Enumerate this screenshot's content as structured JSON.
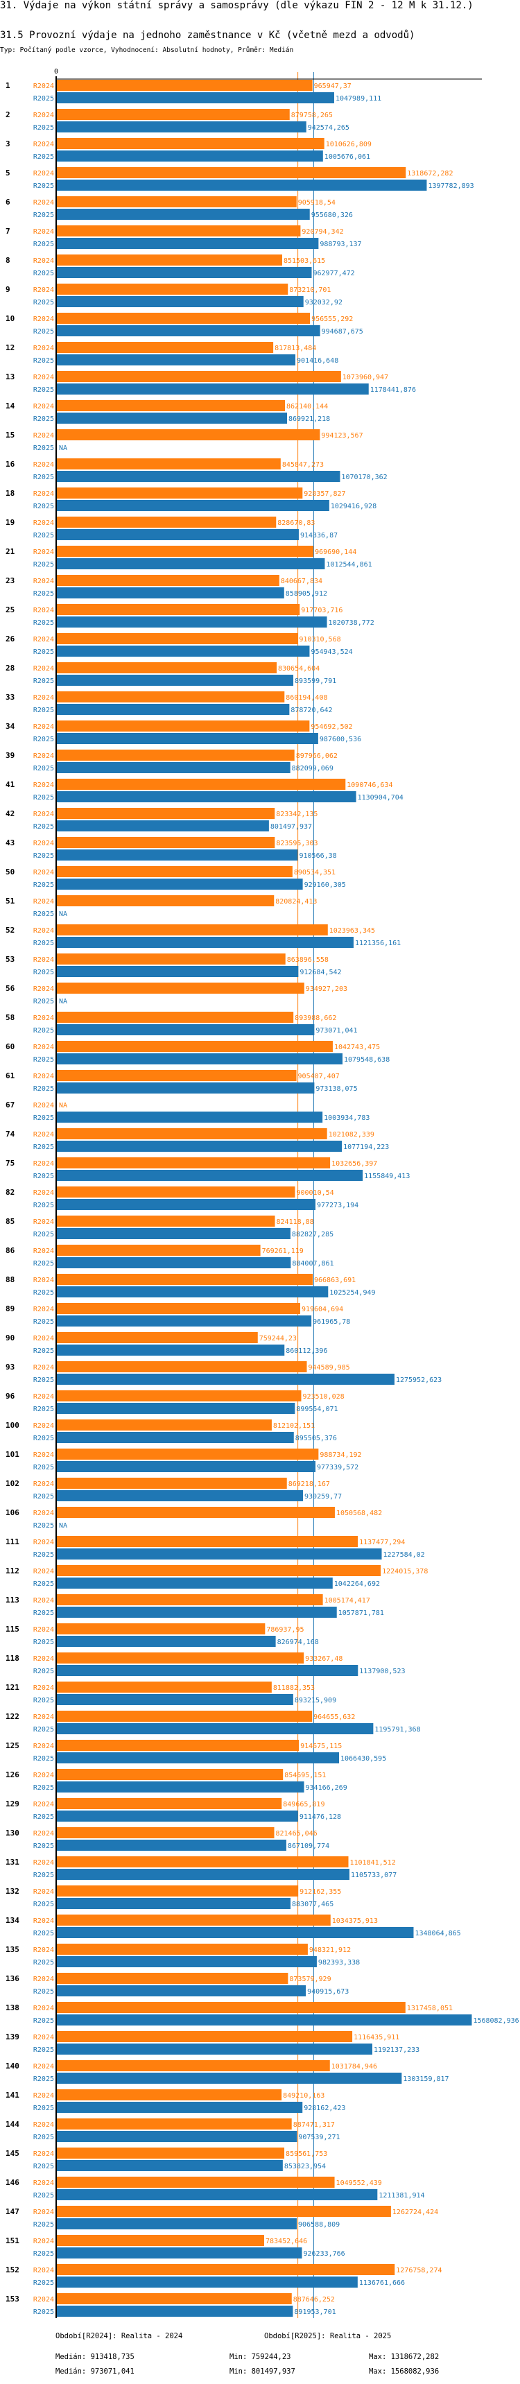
{
  "header": {
    "title": "31. Výdaje na výkon státní správy a samosprávy (dle výkazu FIN 2 - 12 M k 31.12.)",
    "subtitle": "31.5 Provozní výdaje na jednoho zaměstnance v Kč (včetně mezd a odvodů)",
    "meta": "Typ: Počítaný podle vzorce, Vyhodnocení: Absolutní hodnoty, Průměr: Medián"
  },
  "chart_data": {
    "type": "bar",
    "orientation": "horizontal",
    "title": "31.5 Provozní výdaje na jednoho zaměstnance v Kč (včetně mezd a odvodů)",
    "xlabel": "",
    "ylabel": "",
    "x_axis_tick": "0",
    "xlim": [
      0,
      1568082.936
    ],
    "grid": false,
    "na_label": "NA",
    "colors": {
      "R2024": "#ff7f0e",
      "R2025": "#1f77b4",
      "axis": "#000000"
    },
    "categories": [
      "1",
      "2",
      "3",
      "5",
      "6",
      "7",
      "8",
      "9",
      "10",
      "12",
      "13",
      "14",
      "15",
      "16",
      "18",
      "19",
      "21",
      "23",
      "25",
      "26",
      "28",
      "33",
      "34",
      "39",
      "41",
      "42",
      "43",
      "50",
      "51",
      "52",
      "53",
      "56",
      "58",
      "60",
      "61",
      "67",
      "74",
      "75",
      "82",
      "85",
      "86",
      "88",
      "89",
      "90",
      "93",
      "96",
      "100",
      "101",
      "102",
      "106",
      "111",
      "112",
      "113",
      "115",
      "118",
      "121",
      "122",
      "125",
      "126",
      "129",
      "130",
      "131",
      "132",
      "134",
      "135",
      "136",
      "138",
      "139",
      "140",
      "141",
      "144",
      "145",
      "146",
      "147",
      "151",
      "152",
      "153"
    ],
    "series": [
      {
        "name": "R2024",
        "legend": "Období[R2024]: Realita - 2024",
        "values": [
          965947.37,
          879758.265,
          1010626.809,
          1318672.282,
          905918.54,
          920794.342,
          851503.615,
          873210.701,
          956555.292,
          817813.484,
          1073960.947,
          862140.144,
          994123.567,
          845847.273,
          928357.827,
          828670.83,
          969690.144,
          840667.834,
          917703.716,
          910310.568,
          830654.604,
          860194.408,
          954692.502,
          897966.062,
          1090746.634,
          823342.135,
          823595.303,
          890534.351,
          820824.413,
          1023963.345,
          863896.558,
          934927.203,
          893988.662,
          1042743.475,
          905407.407,
          null,
          1021082.339,
          1032656.397,
          900010.54,
          824118.88,
          769261.119,
          966863.691,
          919604.694,
          759244.23,
          944589.985,
          923510.028,
          812102.151,
          988734.192,
          869218.167,
          1050568.482,
          1137477.294,
          1224015.378,
          1005174.417,
          786937.95,
          933267.48,
          811882.353,
          964655.632,
          914675.115,
          854695.151,
          849665.819,
          821465.046,
          1101841.512,
          912162.355,
          1034375.913,
          948321.912,
          873579.929,
          1317458.051,
          1116435.911,
          1031784.946,
          849210.163,
          887471.317,
          859561.753,
          1049552.439,
          1262724.424,
          783452.646,
          1276758.274,
          887646.252
        ],
        "labels": [
          "965947,37",
          "879758,265",
          "1010626,809",
          "1318672,282",
          "905918,54",
          "920794,342",
          "851503,615",
          "873210,701",
          "956555,292",
          "817813,484",
          "1073960,947",
          "862140,144",
          "994123,567",
          "845847,273",
          "928357,827",
          "828670,83",
          "969690,144",
          "840667,834",
          "917703,716",
          "910310,568",
          "830654,604",
          "860194,408",
          "954692,502",
          "897966,062",
          "1090746,634",
          "823342,135",
          "823595,303",
          "890534,351",
          "820824,413",
          "1023963,345",
          "863896,558",
          "934927,203",
          "893988,662",
          "1042743,475",
          "905407,407",
          "NA",
          "1021082,339",
          "1032656,397",
          "900010,54",
          "824118,88",
          "769261,119",
          "966863,691",
          "919604,694",
          "759244,23",
          "944589,985",
          "923510,028",
          "812102,151",
          "988734,192",
          "869218,167",
          "1050568,482",
          "1137477,294",
          "1224015,378",
          "1005174,417",
          "786937,95",
          "933267,48",
          "811882,353",
          "964655,632",
          "914675,115",
          "854695,151",
          "849665,819",
          "821465,046",
          "1101841,512",
          "912162,355",
          "1034375,913",
          "948321,912",
          "873579,929",
          "1317458,051",
          "1116435,911",
          "1031784,946",
          "849210,163",
          "887471,317",
          "859561,753",
          "1049552,439",
          "1262724,424",
          "783452,646",
          "1276758,274",
          "887646,252"
        ],
        "median": 913418.735,
        "min": 759244.23,
        "max": 1318672.282,
        "median_label": "Medián: 913418,735",
        "min_label": "Min: 759244,23",
        "max_label": "Max: 1318672,282"
      },
      {
        "name": "R2025",
        "legend": "Období[R2025]: Realita - 2025",
        "values": [
          1047989.111,
          942574.265,
          1005676.061,
          1397782.893,
          955680.326,
          988793.137,
          962977.472,
          932032.92,
          994687.675,
          901416.648,
          1178441.876,
          869921.218,
          null,
          1070170.362,
          1029416.928,
          914336.87,
          1012544.861,
          858905.912,
          1020738.772,
          954943.524,
          893599.791,
          878720.642,
          987600.536,
          882099.069,
          1130904.704,
          801497.937,
          910566.38,
          929160.305,
          null,
          1121356.161,
          912684.542,
          null,
          973071.041,
          1079548.638,
          973138.075,
          1003934.783,
          1077194.223,
          1155849.413,
          977273.194,
          882827.285,
          884007.861,
          1025254.949,
          961965.78,
          860112.396,
          1275952.623,
          899554.071,
          895505.376,
          977339.572,
          930259.77,
          null,
          1227584.02,
          1042264.692,
          1057871.781,
          826974.168,
          1137900.523,
          893215.909,
          1195791.368,
          1066430.595,
          934166.269,
          911476.128,
          867109.774,
          1105733.077,
          883077.465,
          1348064.865,
          982393.338,
          940915.673,
          1568082.936,
          1192137.233,
          1303159.817,
          928162.423,
          907539.271,
          853823.954,
          1211381.914,
          906588.809,
          926233.766,
          1136761.666,
          891953.701
        ],
        "labels": [
          "1047989,111",
          "942574,265",
          "1005676,061",
          "1397782,893",
          "955680,326",
          "988793,137",
          "962977,472",
          "932032,92",
          "994687,675",
          "901416,648",
          "1178441,876",
          "869921,218",
          "NA",
          "1070170,362",
          "1029416,928",
          "914336,87",
          "1012544,861",
          "858905,912",
          "1020738,772",
          "954943,524",
          "893599,791",
          "878720,642",
          "987600,536",
          "882099,069",
          "1130904,704",
          "801497,937",
          "910566,38",
          "929160,305",
          "NA",
          "1121356,161",
          "912684,542",
          "NA",
          "973071,041",
          "1079548,638",
          "973138,075",
          "1003934,783",
          "1077194,223",
          "1155849,413",
          "977273,194",
          "882827,285",
          "884007,861",
          "1025254,949",
          "961965,78",
          "860112,396",
          "1275952,623",
          "899554,071",
          "895505,376",
          "977339,572",
          "930259,77",
          "NA",
          "1227584,02",
          "1042264,692",
          "1057871,781",
          "826974,168",
          "1137900,523",
          "893215,909",
          "1195791,368",
          "1066430,595",
          "934166,269",
          "911476,128",
          "867109,774",
          "1105733,077",
          "883077,465",
          "1348064,865",
          "982393,338",
          "940915,673",
          "1568082,936",
          "1192137,233",
          "1303159,817",
          "928162,423",
          "907539,271",
          "853823,954",
          "1211381,914",
          "906588,809",
          "926233,766",
          "1136761,666",
          "891953,701"
        ],
        "median": 973071.041,
        "min": 801497.937,
        "max": 1568082.936,
        "median_label": "Medián: 973071,041",
        "min_label": "Min: 801497,937",
        "max_label": "Max: 1568082,936"
      }
    ]
  }
}
